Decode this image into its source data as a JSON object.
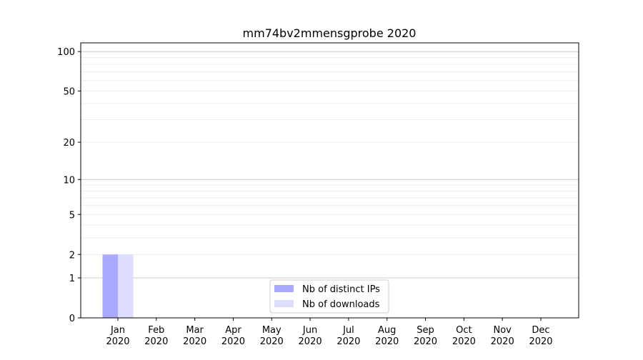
{
  "chart_data": {
    "type": "bar",
    "title": "mm74bv2mmensgprobe 2020",
    "xlabel": "",
    "ylabel": "",
    "yscale": "log(1+y)",
    "ylim": [
      0,
      116
    ],
    "yticks": [
      0,
      1,
      2,
      5,
      10,
      20,
      50,
      100
    ],
    "grid": true,
    "legend_position": "bottom-center",
    "categories": [
      "Jan\n2020",
      "Feb\n2020",
      "Mar\n2020",
      "Apr\n2020",
      "May\n2020",
      "Jun\n2020",
      "Jul\n2020",
      "Aug\n2020",
      "Sep\n2020",
      "Oct\n2020",
      "Nov\n2020",
      "Dec\n2020"
    ],
    "series": [
      {
        "name": "Nb of distinct IPs",
        "color": "#aaaaff",
        "values": [
          2,
          0,
          0,
          0,
          0,
          0,
          0,
          0,
          0,
          0,
          0,
          0
        ]
      },
      {
        "name": "Nb of downloads",
        "color": "#ddddff",
        "values": [
          2,
          0,
          0,
          0,
          0,
          0,
          0,
          0,
          0,
          0,
          0,
          0
        ]
      }
    ]
  }
}
